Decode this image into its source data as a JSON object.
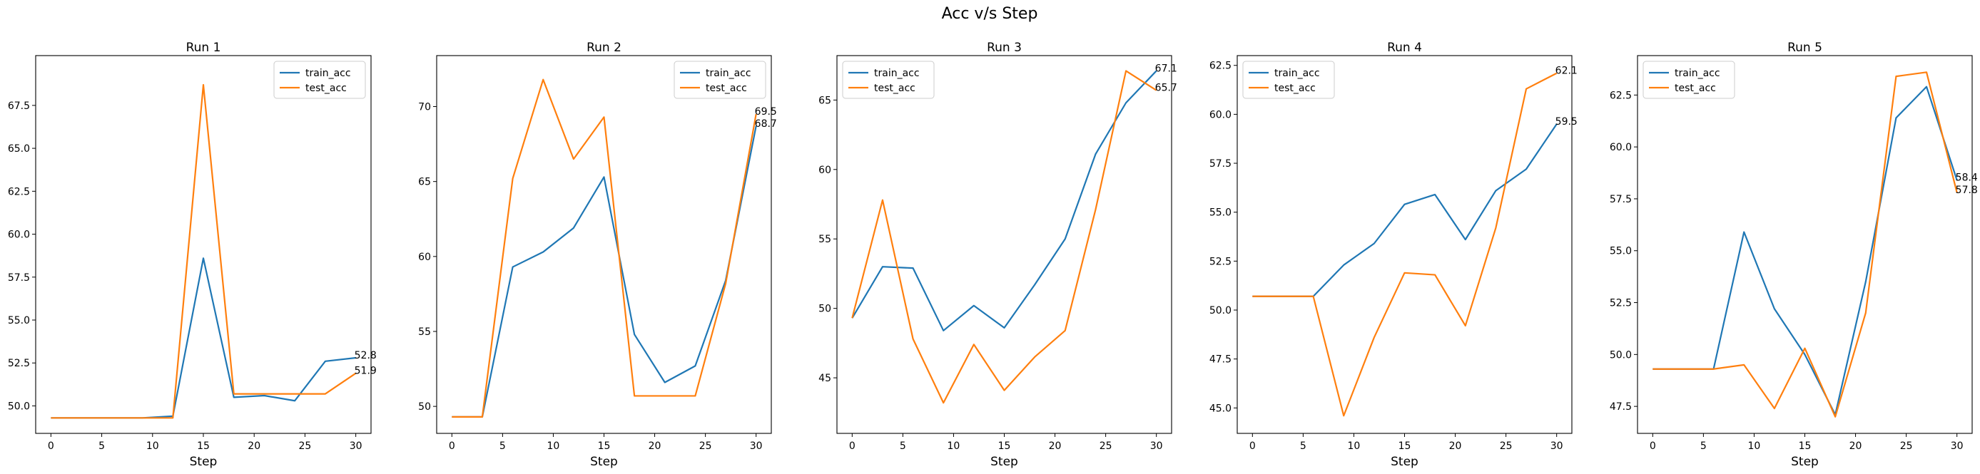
{
  "figure": {
    "suptitle": "Acc v/s Step"
  },
  "colors": {
    "train": "#1f77b4",
    "test": "#ff7f0e",
    "axis": "#000000"
  },
  "chart_data": [
    {
      "type": "line",
      "title": "Run 1",
      "xlabel": "Step",
      "ylabel": "",
      "xlim": [
        -1.5,
        31.5
      ],
      "ylim": [
        48.4,
        70.4
      ],
      "xticks": [
        0,
        5,
        10,
        15,
        20,
        25,
        30
      ],
      "yticks": [
        50.0,
        52.5,
        55.0,
        57.5,
        60.0,
        62.5,
        65.0,
        67.5
      ],
      "legend_loc": "upper right",
      "x": [
        0,
        3,
        6,
        9,
        12,
        15,
        18,
        21,
        24,
        27,
        30
      ],
      "series": [
        {
          "name": "train_acc",
          "values": [
            49.3,
            49.3,
            49.3,
            49.3,
            49.4,
            58.6,
            50.5,
            50.6,
            50.3,
            52.6,
            52.8
          ],
          "end_label": "52.8"
        },
        {
          "name": "test_acc",
          "values": [
            49.3,
            49.3,
            49.3,
            49.3,
            49.3,
            68.7,
            50.7,
            50.7,
            50.7,
            50.7,
            51.9
          ],
          "end_label": "51.9"
        }
      ]
    },
    {
      "type": "line",
      "title": "Run 2",
      "xlabel": "Step",
      "ylabel": "",
      "xlim": [
        -1.5,
        31.5
      ],
      "ylim": [
        48.2,
        73.4
      ],
      "xticks": [
        0,
        5,
        10,
        15,
        20,
        25,
        30
      ],
      "yticks": [
        50,
        55,
        60,
        65,
        70
      ],
      "legend_loc": "upper right",
      "x": [
        0,
        3,
        6,
        9,
        12,
        15,
        18,
        21,
        24,
        27,
        30
      ],
      "series": [
        {
          "name": "train_acc",
          "values": [
            49.3,
            49.3,
            59.3,
            60.3,
            61.9,
            65.3,
            54.8,
            51.6,
            52.7,
            58.4,
            68.7
          ],
          "end_label": "68.7"
        },
        {
          "name": "test_acc",
          "values": [
            49.3,
            49.3,
            65.2,
            71.8,
            66.5,
            69.3,
            50.7,
            50.7,
            50.7,
            58.2,
            69.5
          ],
          "end_label": "69.5"
        }
      ]
    },
    {
      "type": "line",
      "title": "Run 3",
      "xlabel": "Step",
      "ylabel": "",
      "xlim": [
        -1.5,
        31.5
      ],
      "ylim": [
        41.0,
        68.2
      ],
      "xticks": [
        0,
        5,
        10,
        15,
        20,
        25,
        30
      ],
      "yticks": [
        45,
        50,
        55,
        60,
        65
      ],
      "legend_loc": "upper left",
      "x": [
        0,
        3,
        6,
        9,
        12,
        15,
        18,
        21,
        24,
        27,
        30
      ],
      "series": [
        {
          "name": "train_acc",
          "values": [
            49.3,
            53.0,
            52.9,
            48.4,
            50.2,
            48.6,
            51.7,
            55.0,
            61.1,
            64.8,
            67.1
          ],
          "end_label": "67.1"
        },
        {
          "name": "test_acc",
          "values": [
            49.3,
            57.8,
            47.8,
            43.2,
            47.4,
            44.1,
            46.5,
            48.4,
            57.1,
            67.1,
            65.7
          ],
          "end_label": "65.7"
        }
      ]
    },
    {
      "type": "line",
      "title": "Run 4",
      "xlabel": "Step",
      "ylabel": "",
      "xlim": [
        -1.5,
        31.5
      ],
      "ylim": [
        43.7,
        63.0
      ],
      "xticks": [
        0,
        5,
        10,
        15,
        20,
        25,
        30
      ],
      "yticks": [
        45.0,
        47.5,
        50.0,
        52.5,
        55.0,
        57.5,
        60.0,
        62.5
      ],
      "legend_loc": "upper left",
      "x": [
        0,
        3,
        6,
        9,
        12,
        15,
        18,
        21,
        24,
        27,
        30
      ],
      "series": [
        {
          "name": "train_acc",
          "values": [
            50.7,
            50.7,
            50.7,
            52.3,
            53.4,
            55.4,
            55.9,
            53.6,
            56.1,
            57.2,
            59.5
          ],
          "end_label": "59.5"
        },
        {
          "name": "test_acc",
          "values": [
            50.7,
            50.7,
            50.7,
            44.6,
            48.6,
            51.9,
            51.8,
            49.2,
            54.2,
            61.3,
            62.1
          ],
          "end_label": "62.1"
        }
      ]
    },
    {
      "type": "line",
      "title": "Run 5",
      "xlabel": "Step",
      "ylabel": "",
      "xlim": [
        -1.5,
        31.5
      ],
      "ylim": [
        46.2,
        64.4
      ],
      "xticks": [
        0,
        5,
        10,
        15,
        20,
        25,
        30
      ],
      "yticks": [
        47.5,
        50.0,
        52.5,
        55.0,
        57.5,
        60.0,
        62.5
      ],
      "legend_loc": "upper left",
      "x": [
        0,
        3,
        6,
        9,
        12,
        15,
        18,
        21,
        24,
        27,
        30
      ],
      "series": [
        {
          "name": "train_acc",
          "values": [
            49.3,
            49.3,
            49.3,
            55.9,
            52.2,
            50.0,
            47.1,
            53.5,
            61.4,
            62.9,
            58.4
          ],
          "end_label": "58.4"
        },
        {
          "name": "test_acc",
          "values": [
            49.3,
            49.3,
            49.3,
            49.5,
            47.4,
            50.3,
            47.0,
            52.0,
            63.4,
            63.6,
            57.8
          ],
          "end_label": "57.8"
        }
      ]
    }
  ]
}
